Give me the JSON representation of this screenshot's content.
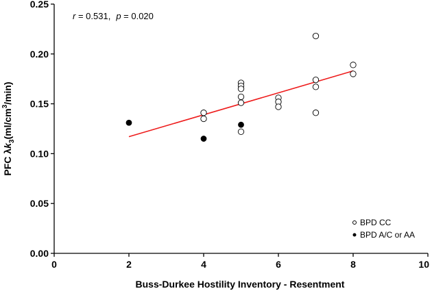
{
  "chart_data": {
    "type": "scatter",
    "xlabel": "Buss-Durkee Hostility Inventory - Resentment",
    "ylabel": {
      "prefix": "PFC ",
      "lambda": "λ",
      "k": "k",
      "sub": "3",
      "unit_open": "(ml/cm",
      "sup": "3",
      "unit_close": "/min)"
    },
    "xlim": [
      0,
      10
    ],
    "ylim": [
      0,
      0.25
    ],
    "x_ticks": [
      0,
      2,
      4,
      6,
      8,
      10
    ],
    "x_tick_labels": [
      "0",
      "2",
      "4",
      "6",
      "8",
      "10"
    ],
    "y_ticks": [
      0,
      0.05,
      0.1,
      0.15,
      0.2,
      0.25
    ],
    "y_tick_labels": [
      "0.00",
      "0.05",
      "0.10",
      "0.15",
      "0.20",
      "0.25"
    ],
    "annotation": {
      "r_symbol": "r",
      "r_text": " = 0.531,",
      "p_symbol": "p",
      "p_text": " = 0.020"
    },
    "series": [
      {
        "name": "BPD CC",
        "marker": "open-circle",
        "color": "#000000",
        "points": [
          [
            4,
            0.141
          ],
          [
            4,
            0.135
          ],
          [
            5,
            0.171
          ],
          [
            5,
            0.168
          ],
          [
            5,
            0.165
          ],
          [
            5,
            0.157
          ],
          [
            5,
            0.151
          ],
          [
            5,
            0.122
          ],
          [
            6,
            0.156
          ],
          [
            6,
            0.152
          ],
          [
            6,
            0.147
          ],
          [
            7,
            0.218
          ],
          [
            7,
            0.174
          ],
          [
            7,
            0.167
          ],
          [
            7,
            0.141
          ],
          [
            8,
            0.189
          ],
          [
            8,
            0.18
          ]
        ]
      },
      {
        "name": "BPD A/C or AA",
        "marker": "filled-circle",
        "color": "#000000",
        "points": [
          [
            2,
            0.131
          ],
          [
            4,
            0.115
          ],
          [
            5,
            0.129
          ]
        ]
      }
    ],
    "regression_line": {
      "color": "#ee1c1c",
      "x": [
        2,
        8
      ],
      "y": [
        0.117,
        0.183
      ]
    },
    "legend": {
      "position": "bottom-right",
      "items": [
        "BPD CC",
        "BPD A/C or AA"
      ]
    }
  }
}
